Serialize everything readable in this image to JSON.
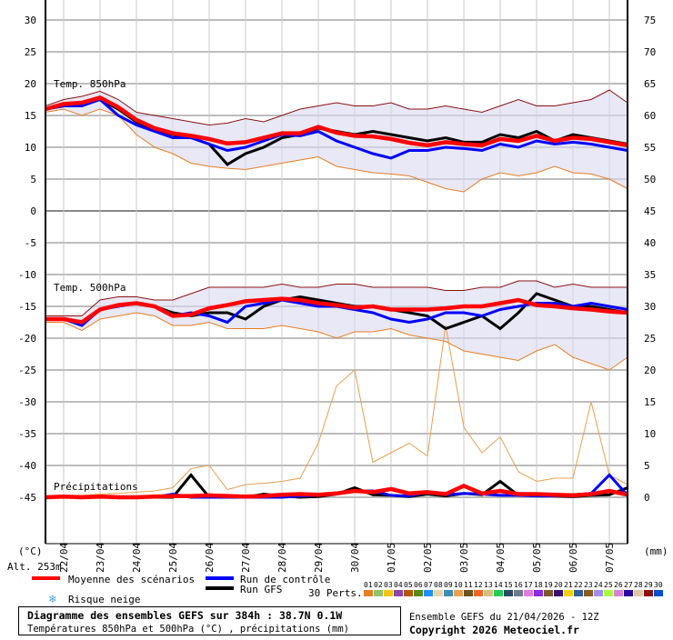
{
  "chart_data": {
    "type": "line",
    "title": "Diagramme des ensembles GEFS sur 384h : 38.7N 0.1W",
    "subtitle": "Températures 850hPa et 500hPa (°C) , précipitations (mm)",
    "run_info": "Ensemble GEFS du 21/04/2026 - 12Z",
    "copyright": "Copyright 2026 Meteociel.fr",
    "altitude": "Alt. 253m",
    "left_unit": "(°C)",
    "right_unit": "(mm)",
    "x_step_hours": 12,
    "x_ticks": [
      "22/04",
      "23/04",
      "24/04",
      "25/04",
      "26/04",
      "27/04",
      "28/04",
      "29/04",
      "30/04",
      "01/05",
      "02/05",
      "03/05",
      "04/05",
      "05/05",
      "06/05",
      "07/05"
    ],
    "left_ticks_top": [
      "30",
      "25",
      "20",
      "15",
      "10",
      "5",
      "0"
    ],
    "left_ticks_bottom": [
      "-5",
      "-10",
      "-15",
      "-20",
      "-25",
      "-30",
      "-35",
      "-40",
      "-45"
    ],
    "right_ticks_top": [
      "75",
      "70",
      "65",
      "60",
      "55",
      "50",
      "45"
    ],
    "right_ticks_bottom": [
      "40",
      "35",
      "30",
      "25",
      "20",
      "15",
      "10",
      "5",
      "0"
    ],
    "grid": true,
    "panels": [
      {
        "label": "Temp. 850hPa",
        "ylim": [
          0,
          30
        ],
        "mean": [
          16,
          16.8,
          17,
          17.8,
          16.3,
          14.3,
          13,
          12.2,
          11.8,
          11.3,
          10.6,
          10.8,
          11.5,
          12.2,
          12.2,
          13.2,
          12.3,
          11.8,
          11.7,
          11.3,
          10.7,
          10.3,
          10.8,
          10.5,
          10.3,
          11.3,
          11,
          11.8,
          11,
          11.5,
          11.3,
          10.8,
          10.3
        ],
        "control": [
          16,
          16.5,
          16.5,
          17.5,
          15,
          13.5,
          12.5,
          11.5,
          11.5,
          10.5,
          9.5,
          10,
          11,
          12,
          11.8,
          12.5,
          11,
          10,
          9,
          8.3,
          9.5,
          9.5,
          10,
          9.8,
          9.5,
          10.5,
          10,
          11,
          10.5,
          10.8,
          10.5,
          10,
          9.5
        ],
        "gfs": [
          16,
          16.5,
          16.8,
          17.5,
          16,
          14,
          12.8,
          12,
          11.5,
          10.5,
          7.3,
          9,
          10,
          11.5,
          12,
          13,
          12.5,
          12,
          12.5,
          12,
          11.5,
          11,
          11.5,
          10.8,
          10.8,
          12,
          11.5,
          12.5,
          11,
          12,
          11.5,
          11,
          10.5
        ],
        "max": [
          16.5,
          17.5,
          18,
          18.8,
          17.5,
          15.5,
          15,
          14.5,
          14,
          13.5,
          13.8,
          14.5,
          14,
          15,
          16,
          16.5,
          17,
          16.5,
          16.5,
          17,
          16,
          16,
          16.5,
          16,
          15.5,
          16.5,
          17.5,
          16.5,
          16.5,
          17,
          17.5,
          19,
          17
        ],
        "min": [
          15.5,
          16,
          15,
          16,
          15,
          12,
          10,
          9,
          7.5,
          7,
          6.7,
          6.5,
          7,
          7.5,
          8,
          8.5,
          7,
          6.5,
          6,
          5.8,
          5.5,
          4.5,
          3.5,
          3,
          5,
          6,
          5.5,
          6,
          7,
          6,
          5.8,
          5,
          3.5
        ]
      },
      {
        "label": "Temp. 500hPa",
        "ylim": [
          -45,
          0
        ],
        "mean": [
          -17,
          -17,
          -17.5,
          -15.5,
          -14.8,
          -14.5,
          -15,
          -16.5,
          -16.3,
          -15.3,
          -14.8,
          -14.2,
          -14,
          -13.8,
          -14,
          -14.5,
          -14.8,
          -15.2,
          -15,
          -15.5,
          -15.5,
          -15.5,
          -15.3,
          -15,
          -15,
          -14.5,
          -14,
          -14.8,
          -15,
          -15.3,
          -15.5,
          -15.8,
          -16
        ],
        "control": [
          -17,
          -17,
          -18,
          -15.5,
          -15,
          -14.5,
          -15,
          -16.5,
          -16,
          -16.5,
          -17.5,
          -15,
          -14.5,
          -14,
          -14.5,
          -15,
          -15,
          -15.5,
          -16,
          -17,
          -17.5,
          -17,
          -16,
          -16,
          -16.5,
          -15.5,
          -15,
          -14.5,
          -14.5,
          -15,
          -14.5,
          -15,
          -15.5
        ],
        "gfs": [
          -17,
          -17,
          -17.5,
          -15.5,
          -14.8,
          -14.5,
          -15,
          -16,
          -16.5,
          -16,
          -16,
          -17,
          -15,
          -14,
          -13.5,
          -14,
          -14.5,
          -15,
          -15,
          -15.5,
          -16,
          -16.5,
          -18.5,
          -17.5,
          -16.5,
          -18.5,
          -16,
          -13,
          -14,
          -15,
          -15,
          -15.5,
          -16
        ],
        "max": [
          -16.5,
          -16.5,
          -16.5,
          -14,
          -13.5,
          -13.5,
          -14,
          -14,
          -13,
          -12,
          -12,
          -12,
          -12,
          -11.5,
          -12,
          -12,
          -11.5,
          -11.5,
          -12,
          -12,
          -12,
          -12,
          -12.5,
          -12.5,
          -12,
          -12,
          -11,
          -11,
          -12,
          -11.5,
          -12,
          -12,
          -12
        ],
        "min": [
          -17.5,
          -17.5,
          -18.8,
          -17,
          -16.5,
          -16,
          -16.5,
          -18,
          -18,
          -17.5,
          -18.5,
          -18.5,
          -18.5,
          -18,
          -18.5,
          -19,
          -20,
          -19,
          -19,
          -18.5,
          -19.5,
          -20,
          -20.5,
          -22,
          -22.5,
          -23,
          -23.5,
          -22,
          -21,
          -23,
          -24,
          -25,
          -23
        ]
      },
      {
        "label": "Précipitations",
        "ylim": [
          0,
          45
        ],
        "mean": [
          0,
          0.1,
          0,
          0.1,
          0,
          0,
          0.1,
          0.2,
          0.2,
          0.3,
          0.2,
          0.1,
          0.2,
          0.4,
          0.5,
          0.4,
          0.6,
          1,
          0.8,
          1.3,
          0.6,
          0.8,
          0.5,
          1.8,
          0.6,
          1,
          0.5,
          0.5,
          0.4,
          0.3,
          0.5,
          1,
          0.4
        ],
        "control": [
          0,
          0,
          0,
          0,
          0,
          0,
          0,
          0.5,
          0,
          0,
          0,
          0,
          0,
          0,
          0.2,
          0.3,
          0.5,
          1,
          1,
          0.3,
          0.2,
          0.8,
          0.4,
          0.6,
          0.5,
          0.3,
          0.3,
          0.2,
          0.2,
          0.4,
          0.6,
          3.5,
          0.3
        ],
        "gfs": [
          0,
          0,
          0,
          0,
          0,
          0,
          0,
          0,
          3.5,
          0,
          0,
          0,
          0.5,
          0.2,
          0,
          0.1,
          0.5,
          1.5,
          0.4,
          0.3,
          0.1,
          0.5,
          0.2,
          0.6,
          0.4,
          2.5,
          0.3,
          0.3,
          0.2,
          0.1,
          0.3,
          0.4,
          1.5
        ],
        "max": [
          0,
          0.3,
          0.3,
          0.5,
          0.6,
          0.8,
          1,
          1.5,
          4.5,
          5,
          1.2,
          2,
          2.2,
          2.5,
          3,
          8.5,
          17.5,
          20,
          5.5,
          7,
          8.5,
          6.5,
          27,
          11,
          7,
          9.5,
          4,
          2.5,
          3,
          3,
          15,
          3.5,
          2
        ]
      }
    ],
    "legend": {
      "mean": {
        "label": "Moyenne des scénarios",
        "color": "#ff0000"
      },
      "control": {
        "label": "Run de contrôle",
        "color": "#0000ff"
      },
      "gfs": {
        "label": "Run GFS",
        "color": "#000000"
      },
      "snow": {
        "label": "Risque neige",
        "icon": "snowflake-icon",
        "color": "#4aa3df"
      },
      "perts_label": "30 Perts.",
      "perts": [
        {
          "id": "01",
          "color": "#e67e22"
        },
        {
          "id": "02",
          "color": "#8fc46a"
        },
        {
          "id": "03",
          "color": "#f1c40f"
        },
        {
          "id": "04",
          "color": "#8e44ad"
        },
        {
          "id": "05",
          "color": "#b35806"
        },
        {
          "id": "06",
          "color": "#5a8a14"
        },
        {
          "id": "07",
          "color": "#1e90ff"
        },
        {
          "id": "08",
          "color": "#e8d5b0"
        },
        {
          "id": "09",
          "color": "#3a8fb7"
        },
        {
          "id": "10",
          "color": "#e8a050"
        },
        {
          "id": "11",
          "color": "#6b5324"
        },
        {
          "id": "12",
          "color": "#f26522"
        },
        {
          "id": "13",
          "color": "#d4c080"
        },
        {
          "id": "14",
          "color": "#22cc55"
        },
        {
          "id": "15",
          "color": "#2c4a66"
        },
        {
          "id": "16",
          "color": "#6b7b8c"
        },
        {
          "id": "17",
          "color": "#e07be0"
        },
        {
          "id": "18",
          "color": "#8a2be2"
        },
        {
          "id": "19",
          "color": "#7a5a2a"
        },
        {
          "id": "20",
          "color": "#3a1070"
        },
        {
          "id": "21",
          "color": "#f0d000"
        },
        {
          "id": "22",
          "color": "#2e5f9e"
        },
        {
          "id": "23",
          "color": "#8b5a1e"
        },
        {
          "id": "24",
          "color": "#a08fe8"
        },
        {
          "id": "25",
          "color": "#a8ff40"
        },
        {
          "id": "26",
          "color": "#d880d8"
        },
        {
          "id": "27",
          "color": "#2a0aa0"
        },
        {
          "id": "28",
          "color": "#e0c8a8"
        },
        {
          "id": "29",
          "color": "#8b1010"
        },
        {
          "id": "30",
          "color": "#0050d0"
        }
      ]
    }
  }
}
